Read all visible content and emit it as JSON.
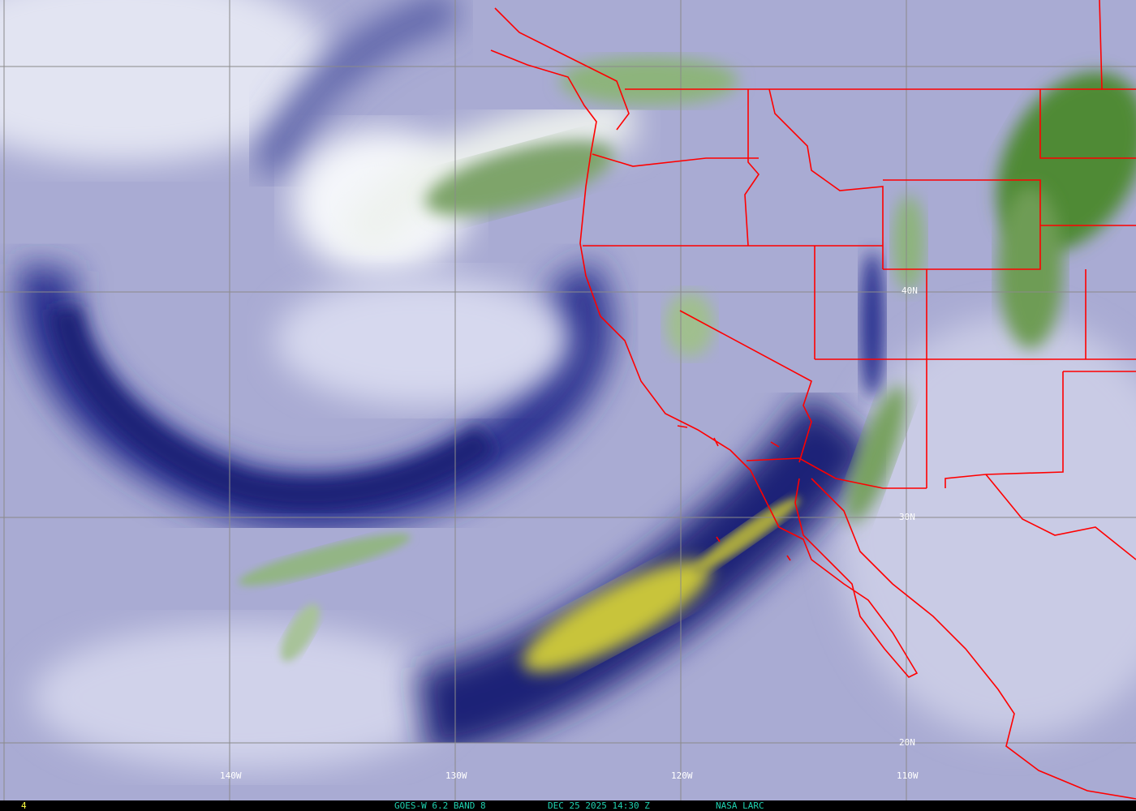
{
  "image": {
    "satellite": "GOES-W",
    "channel": "6.2 BAND 8",
    "date": "DEC 25 2025",
    "time": "14:30 Z",
    "source": "NASA LARC",
    "frame_number": "4"
  },
  "grid_labels": {
    "latitudes": [
      "40N",
      "30N",
      "20N"
    ],
    "longitudes": [
      "140W",
      "130W",
      "120W",
      "110W"
    ]
  },
  "colors": {
    "background": "#a9abd3",
    "dry_air": "#1c2377",
    "moist_high_cloud": "#ffffff",
    "cold_cloud_tops": "#5b8a3a",
    "very_dry": "#c8c43a",
    "borders": "#ff0000",
    "grid": "#8a8a8a",
    "caption_text": "#1fd0b0",
    "frame_number_text": "#ffff40"
  }
}
